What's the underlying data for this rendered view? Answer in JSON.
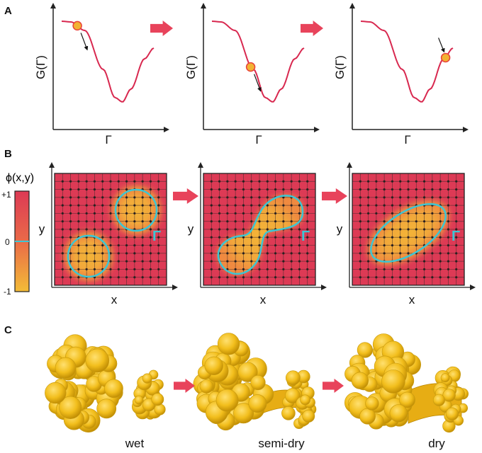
{
  "panels": {
    "a": {
      "label": "A",
      "xlabel": "Γ",
      "ylabel": "G(Γ)"
    },
    "b": {
      "label": "B",
      "xlabel": "x",
      "ylabel": "y",
      "boundary_label": "Γ",
      "colorbar": {
        "title": "ϕ(x,y)",
        "ticks": [
          "+1",
          "0",
          "-1"
        ]
      }
    },
    "c": {
      "label": "C",
      "states": [
        "wet",
        "semi-dry",
        "dry"
      ]
    }
  },
  "colors": {
    "curve": "#d8284f",
    "arrow": "#e8435b",
    "ball_fill": "#f2b233",
    "ball_edge": "#e8433a",
    "field_high": "#dd3a55",
    "field_low": "#f2b73a",
    "boundary": "#3cc6d4",
    "protein": "#f2be1c"
  }
}
